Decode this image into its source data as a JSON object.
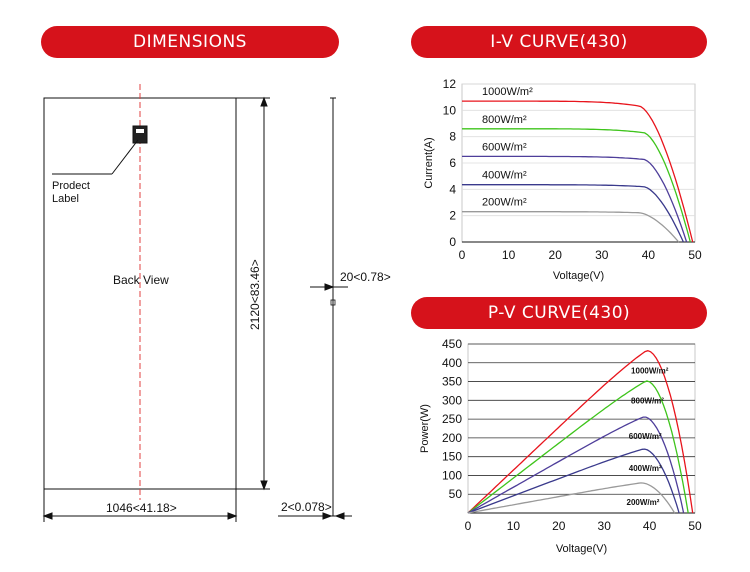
{
  "headers": {
    "dimensions": "DIMENSIONS",
    "iv": "I-V CURVE(430)",
    "pv": "P-V CURVE(430)"
  },
  "dimensions": {
    "product_label_line1": "Prodect",
    "product_label_line2": "Label",
    "back_view": "Back View",
    "height_label": "2120<83.46>",
    "width_label": "1046<41.18>",
    "frame_thickness_label": "20<0.78>",
    "edge_label": "2<0.078>"
  },
  "colors": {
    "accent": "#d6121b",
    "series": [
      "#e8141c",
      "#3ec41b",
      "#4e3e9a",
      "#3a3a8c",
      "#9a9a9a"
    ]
  },
  "chart_data": [
    {
      "type": "line",
      "title": "I-V CURVE(430)",
      "xlabel": "Voltage(V)",
      "ylabel": "Current(A)",
      "xlim": [
        0,
        50
      ],
      "ylim": [
        0,
        12
      ],
      "xticks": [
        0,
        10,
        20,
        30,
        40,
        50
      ],
      "yticks": [
        0,
        2,
        4,
        6,
        8,
        10,
        12
      ],
      "grid": true,
      "series": [
        {
          "name": "1000W/m²",
          "isc": 10.7,
          "vmp": 38,
          "voc": 49.5
        },
        {
          "name": "800W/m²",
          "isc": 8.6,
          "vmp": 39,
          "voc": 49
        },
        {
          "name": "600W/m²",
          "isc": 6.5,
          "vmp": 39,
          "voc": 48.2
        },
        {
          "name": "400W/m²",
          "isc": 4.35,
          "vmp": 39,
          "voc": 47.5
        },
        {
          "name": "200W/m²",
          "isc": 2.3,
          "vmp": 38,
          "voc": 46.5
        }
      ]
    },
    {
      "type": "line",
      "title": "P-V CURVE(430)",
      "xlabel": "Voltage(V)",
      "ylabel": "Power(W)",
      "xlim": [
        0,
        50
      ],
      "ylim": [
        0,
        450
      ],
      "xticks": [
        0,
        10,
        20,
        30,
        40,
        50
      ],
      "yticks": [
        50,
        100,
        150,
        200,
        250,
        300,
        350,
        400,
        450
      ],
      "ytick_labels_show_zero": false,
      "grid": true,
      "series": [
        {
          "name": "1000W/m²",
          "pmax": 430,
          "vmp": 39,
          "voc": 49.5
        },
        {
          "name": "800W/m²",
          "pmax": 350,
          "vmp": 39,
          "voc": 48.5
        },
        {
          "name": "600W/m²",
          "pmax": 255,
          "vmp": 38.5,
          "voc": 47.5
        },
        {
          "name": "400W/m²",
          "pmax": 170,
          "vmp": 38.5,
          "voc": 46.5
        },
        {
          "name": "200W/m²",
          "pmax": 80,
          "vmp": 38,
          "voc": 45.5
        }
      ]
    }
  ]
}
